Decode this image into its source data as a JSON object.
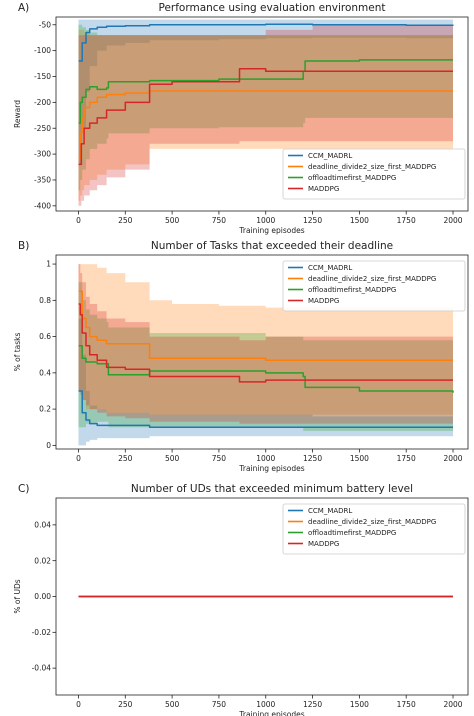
{
  "chart_data": [
    {
      "type": "line",
      "panel": "A)",
      "title": "Performance using evaluation environment",
      "xlabel": "Training episodes",
      "ylabel": "Reward",
      "xlim": [
        -120,
        2080
      ],
      "ylim": [
        -410,
        -35
      ],
      "xticks": [
        0,
        250,
        500,
        750,
        1000,
        1250,
        1500,
        1750,
        2000
      ],
      "yticks": [
        -50,
        -100,
        -150,
        -200,
        -250,
        -300,
        -350,
        -400
      ],
      "legend": "bottom-right",
      "series": [
        {
          "name": "CCM_MADRL",
          "color": "#1f77b4",
          "x": [
            0,
            20,
            40,
            60,
            100,
            150,
            250,
            380,
            500,
            750,
            1000,
            1250,
            1500,
            1750,
            2000
          ],
          "y": [
            -120,
            -85,
            -65,
            -58,
            -55,
            -53,
            -52,
            -50,
            -50,
            -50,
            -49,
            -50,
            -50,
            -51,
            -52
          ],
          "lo": [
            -320,
            -250,
            -180,
            -130,
            -100,
            -90,
            -85,
            -80,
            -80,
            -78,
            -76,
            -75,
            -75,
            -76,
            -76
          ],
          "hi": [
            -40,
            -40,
            -40,
            -40,
            -40,
            -40,
            -40,
            -40,
            -40,
            -40,
            -40,
            -40,
            -40,
            -40,
            -40
          ]
        },
        {
          "name": "deadline_divide2_size_first_MADDPG",
          "color": "#ff7f0e",
          "x": [
            0,
            10,
            20,
            30,
            60,
            100,
            150,
            250,
            380,
            500,
            750,
            1000,
            1250,
            1500,
            1750,
            2000
          ],
          "y": [
            -310,
            -260,
            -230,
            -210,
            -200,
            -190,
            -185,
            -182,
            -178,
            -178,
            -178,
            -178,
            -178,
            -178,
            -178,
            -178
          ],
          "lo": [
            -390,
            -380,
            -370,
            -360,
            -350,
            -340,
            -330,
            -320,
            -290,
            -290,
            -290,
            -290,
            -290,
            -290,
            -290,
            -290
          ],
          "hi": [
            -60,
            -60,
            -60,
            -65,
            -70,
            -70,
            -70,
            -70,
            -70,
            -70,
            -70,
            -70,
            -70,
            -70,
            -70,
            -70
          ]
        },
        {
          "name": "offloadtimefirst_MADDPG",
          "color": "#2ca02c",
          "x": [
            0,
            10,
            20,
            40,
            60,
            100,
            150,
            160,
            380,
            500,
            750,
            1000,
            1200,
            1210,
            1500,
            1750,
            2000
          ],
          "y": [
            -240,
            -200,
            -190,
            -175,
            -170,
            -175,
            -172,
            -160,
            -158,
            -158,
            -155,
            -155,
            -140,
            -120,
            -118,
            -118,
            -118
          ],
          "lo": [
            -370,
            -350,
            -330,
            -310,
            -290,
            -280,
            -270,
            -260,
            -250,
            -250,
            -248,
            -248,
            -240,
            -230,
            -230,
            -230,
            -230
          ],
          "hi": [
            -50,
            -50,
            -55,
            -60,
            -65,
            -70,
            -70,
            -70,
            -70,
            -70,
            -70,
            -70,
            -70,
            -70,
            -70,
            -70,
            -70
          ]
        },
        {
          "name": "MADDPG",
          "color": "#d62728",
          "x": [
            0,
            15,
            30,
            60,
            100,
            150,
            250,
            380,
            500,
            750,
            860,
            1000,
            1250,
            1500,
            1750,
            2000
          ],
          "y": [
            -320,
            -280,
            -250,
            -240,
            -230,
            -215,
            -200,
            -165,
            -160,
            -160,
            -135,
            -140,
            -140,
            -140,
            -140,
            -140
          ],
          "lo": [
            -400,
            -390,
            -380,
            -370,
            -360,
            -345,
            -330,
            -280,
            -280,
            -280,
            -275,
            -275,
            -275,
            -275,
            -275,
            -275
          ],
          "hi": [
            -70,
            -70,
            -70,
            -70,
            -70,
            -70,
            -70,
            -70,
            -70,
            -70,
            -70,
            -60,
            -50,
            -50,
            -50,
            -50
          ]
        }
      ]
    },
    {
      "type": "line",
      "panel": "B)",
      "title": "Number of Tasks that exceeded their deadline",
      "xlabel": "Training episodes",
      "ylabel": "% of tasks",
      "xlim": [
        -120,
        2080
      ],
      "ylim": [
        -0.02,
        1.05
      ],
      "xticks": [
        0,
        250,
        500,
        750,
        1000,
        1250,
        1500,
        1750,
        2000
      ],
      "yticks": [
        0.0,
        0.2,
        0.4,
        0.6,
        0.8,
        1.0
      ],
      "legend": "top-right",
      "series": [
        {
          "name": "CCM_MADRL",
          "color": "#1f77b4",
          "x": [
            0,
            20,
            40,
            60,
            100,
            150,
            250,
            380,
            500,
            750,
            1000,
            1250,
            1500,
            1750,
            2000
          ],
          "y": [
            0.3,
            0.18,
            0.14,
            0.12,
            0.11,
            0.11,
            0.11,
            0.1,
            0.1,
            0.1,
            0.1,
            0.1,
            0.1,
            0.1,
            0.1
          ],
          "lo": [
            0.0,
            0.0,
            0.02,
            0.03,
            0.04,
            0.04,
            0.04,
            0.05,
            0.05,
            0.05,
            0.05,
            0.05,
            0.05,
            0.05,
            0.05
          ],
          "hi": [
            0.7,
            0.5,
            0.3,
            0.22,
            0.2,
            0.18,
            0.18,
            0.17,
            0.17,
            0.17,
            0.17,
            0.16,
            0.16,
            0.16,
            0.16
          ]
        },
        {
          "name": "deadline_divide2_size_first_MADDPG",
          "color": "#ff7f0e",
          "x": [
            0,
            20,
            40,
            60,
            100,
            150,
            250,
            380,
            500,
            750,
            1000,
            1250,
            1500,
            1750,
            2000
          ],
          "y": [
            0.85,
            0.7,
            0.65,
            0.6,
            0.58,
            0.56,
            0.56,
            0.48,
            0.48,
            0.48,
            0.47,
            0.47,
            0.47,
            0.47,
            0.47
          ],
          "lo": [
            0.3,
            0.25,
            0.2,
            0.2,
            0.2,
            0.18,
            0.18,
            0.17,
            0.17,
            0.17,
            0.17,
            0.17,
            0.17,
            0.17,
            0.17
          ],
          "hi": [
            1.0,
            1.0,
            1.0,
            1.0,
            0.98,
            0.95,
            0.9,
            0.8,
            0.78,
            0.77,
            0.76,
            0.76,
            0.76,
            0.76,
            0.76
          ]
        },
        {
          "name": "offloadtimefirst_MADDPG",
          "color": "#2ca02c",
          "x": [
            0,
            20,
            40,
            60,
            100,
            150,
            160,
            380,
            500,
            750,
            1000,
            1200,
            1210,
            1500,
            1750,
            2000
          ],
          "y": [
            0.55,
            0.48,
            0.46,
            0.46,
            0.45,
            0.45,
            0.39,
            0.41,
            0.41,
            0.41,
            0.4,
            0.38,
            0.32,
            0.3,
            0.3,
            0.29
          ],
          "lo": [
            0.1,
            0.1,
            0.12,
            0.12,
            0.13,
            0.13,
            0.1,
            0.1,
            0.1,
            0.1,
            0.1,
            0.08,
            0.08,
            0.08,
            0.08,
            0.08
          ],
          "hi": [
            0.9,
            0.8,
            0.75,
            0.72,
            0.7,
            0.68,
            0.65,
            0.62,
            0.62,
            0.62,
            0.6,
            0.58,
            0.58,
            0.58,
            0.58,
            0.58
          ]
        },
        {
          "name": "MADDPG",
          "color": "#d62728",
          "x": [
            0,
            10,
            20,
            40,
            60,
            100,
            150,
            250,
            380,
            500,
            750,
            860,
            1000,
            1250,
            1500,
            1750,
            2000
          ],
          "y": [
            0.78,
            0.72,
            0.62,
            0.55,
            0.5,
            0.47,
            0.43,
            0.42,
            0.38,
            0.38,
            0.38,
            0.35,
            0.36,
            0.36,
            0.36,
            0.36,
            0.36
          ],
          "lo": [
            0.3,
            0.28,
            0.25,
            0.22,
            0.2,
            0.18,
            0.16,
            0.15,
            0.13,
            0.13,
            0.13,
            0.12,
            0.12,
            0.12,
            0.12,
            0.12,
            0.12
          ],
          "hi": [
            1.0,
            0.95,
            0.9,
            0.82,
            0.78,
            0.74,
            0.7,
            0.68,
            0.6,
            0.6,
            0.6,
            0.58,
            0.6,
            0.6,
            0.6,
            0.6,
            0.6
          ]
        }
      ]
    },
    {
      "type": "line",
      "panel": "C)",
      "title": "Number of UDs that exceeded minimum battery level",
      "xlabel": "Training episodes",
      "ylabel": "% of UDs",
      "xlim": [
        -120,
        2080
      ],
      "ylim": [
        -0.055,
        0.055
      ],
      "xticks": [
        0,
        250,
        500,
        750,
        1000,
        1250,
        1500,
        1750,
        2000
      ],
      "yticks": [
        0.04,
        0.02,
        0.0,
        -0.02,
        -0.04
      ],
      "ytick_labels": [
        "0.04",
        "0.02",
        "0.00",
        "-0.02",
        "-0.04"
      ],
      "legend": "top-right",
      "series": [
        {
          "name": "CCM_MADRL",
          "color": "#1f77b4",
          "x": [
            0,
            2000
          ],
          "y": [
            0,
            0
          ]
        },
        {
          "name": "deadline_divide2_size_first_MADDPG",
          "color": "#ff7f0e",
          "x": [
            0,
            2000
          ],
          "y": [
            0,
            0
          ]
        },
        {
          "name": "offloadtimefirst_MADDPG",
          "color": "#2ca02c",
          "x": [
            0,
            2000
          ],
          "y": [
            0,
            0
          ]
        },
        {
          "name": "MADDPG",
          "color": "#d62728",
          "x": [
            0,
            2000
          ],
          "y": [
            0,
            0
          ]
        }
      ]
    }
  ]
}
